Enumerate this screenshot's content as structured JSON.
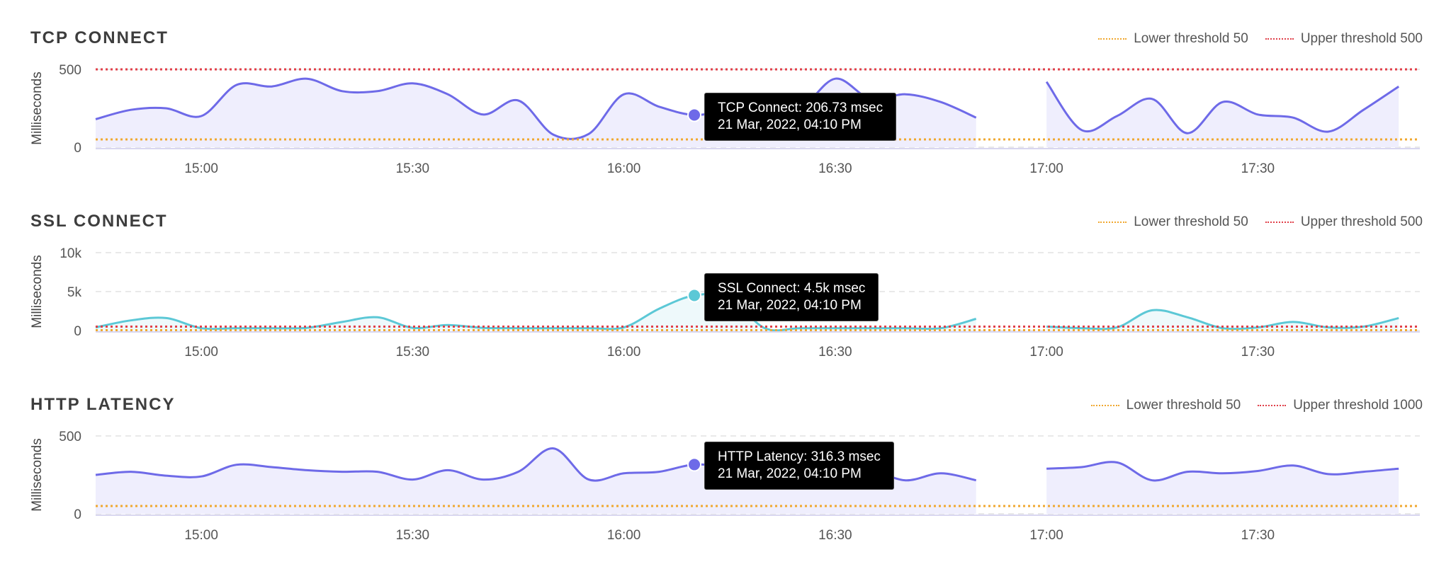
{
  "colors": {
    "tcp_line": "#6e6ae8",
    "tcp_fill": "#efeefd",
    "ssl_line": "#5cc8d6",
    "ssl_fill": "#eef9fb",
    "http_line": "#6e6ae8",
    "http_fill": "#efeefd",
    "lower_threshold": "#f0a830",
    "upper_threshold": "#e0404a",
    "grid": "#e2e2e2",
    "tooltip_bg": "#000000"
  },
  "chart_data": [
    {
      "type": "area",
      "title": "TCP CONNECT",
      "ylabel": "Milliseconds",
      "ylim": [
        0,
        500
      ],
      "yticks": [
        0,
        500
      ],
      "ytick_labels": [
        "0",
        "500"
      ],
      "xlim": [
        "14:45",
        "17:53"
      ],
      "xticks": [
        {
          "t": "15:00",
          "label": "15:00"
        },
        {
          "t": "15:30",
          "label": "15:30"
        },
        {
          "t": "16:00",
          "label": "16:00"
        },
        {
          "t": "16:30",
          "label": "16:30"
        },
        {
          "t": "17:00",
          "label": "17:00"
        },
        {
          "t": "17:30",
          "label": "17:30"
        }
      ],
      "legend": [
        {
          "label": "Lower threshold 50",
          "value": 50,
          "color": "#f0a830"
        },
        {
          "label": "Upper threshold 500",
          "value": 500,
          "color": "#e0404a"
        }
      ],
      "segments": [
        {
          "t": [
            "14:45",
            "14:50",
            "14:55",
            "15:00",
            "15:05",
            "15:10",
            "15:15",
            "15:20",
            "15:25",
            "15:30",
            "15:35",
            "15:40",
            "15:45",
            "15:50",
            "15:55",
            "16:00",
            "16:05",
            "16:10",
            "16:15",
            "16:20",
            "16:25",
            "16:30",
            "16:35",
            "16:40",
            "16:45",
            "16:50",
            "16:55",
            "17:00"
          ],
          "values": [
            180,
            240,
            250,
            200,
            400,
            390,
            440,
            360,
            360,
            410,
            340,
            210,
            300,
            80,
            85,
            340,
            260,
            206.73,
            240,
            230,
            245,
            440,
            310,
            340,
            290,
            190,
            0,
            0
          ]
        }
      ],
      "segments_note": "",
      "tooltip": {
        "line1": "TCP Connect: 206.73 msec",
        "line2": "21 Mar, 2022, 04:10 PM",
        "t": "16:10",
        "value": 206.73
      }
    },
    {
      "type": "area",
      "title": "SSL CONNECT",
      "ylabel": "Milliseconds",
      "ylim": [
        0,
        10000
      ],
      "yticks": [
        0,
        5000,
        10000
      ],
      "ytick_labels": [
        "0",
        "5k",
        "10k"
      ],
      "xlim": [
        "14:45",
        "17:53"
      ],
      "xticks": [
        {
          "t": "15:00",
          "label": "15:00"
        },
        {
          "t": "15:30",
          "label": "15:30"
        },
        {
          "t": "16:00",
          "label": "16:00"
        },
        {
          "t": "16:30",
          "label": "16:30"
        },
        {
          "t": "17:00",
          "label": "17:00"
        },
        {
          "t": "17:30",
          "label": "17:30"
        }
      ],
      "legend": [
        {
          "label": "Lower threshold 50",
          "value": 50,
          "color": "#f0a830"
        },
        {
          "label": "Upper threshold 500",
          "value": 500,
          "color": "#e0404a"
        }
      ],
      "segments": [],
      "tooltip": {
        "line1": "SSL Connect: 4.5k msec",
        "line2": "21 Mar, 2022, 04:10 PM",
        "t": "16:10",
        "value": 4500
      }
    },
    {
      "type": "area",
      "title": "HTTP LATENCY",
      "ylabel": "Milliseconds",
      "ylim": [
        0,
        500
      ],
      "yticks": [
        0,
        500
      ],
      "ytick_labels": [
        "0",
        "500"
      ],
      "xlim": [
        "14:45",
        "17:53"
      ],
      "xticks": [
        {
          "t": "15:00",
          "label": "15:00"
        },
        {
          "t": "15:30",
          "label": "15:30"
        },
        {
          "t": "16:00",
          "label": "16:00"
        },
        {
          "t": "16:30",
          "label": "16:30"
        },
        {
          "t": "17:00",
          "label": "17:00"
        },
        {
          "t": "17:30",
          "label": "17:30"
        }
      ],
      "legend": [
        {
          "label": "Lower threshold 50",
          "value": 50,
          "color": "#f0a830"
        },
        {
          "label": "Upper threshold 1000",
          "value": 1000,
          "color": "#e0404a"
        }
      ],
      "segments": [],
      "tooltip": {
        "line1": "HTTP Latency: 316.3 msec",
        "line2": "21 Mar, 2022, 04:10 PM",
        "t": "16:10",
        "value": 316.3
      }
    }
  ]
}
